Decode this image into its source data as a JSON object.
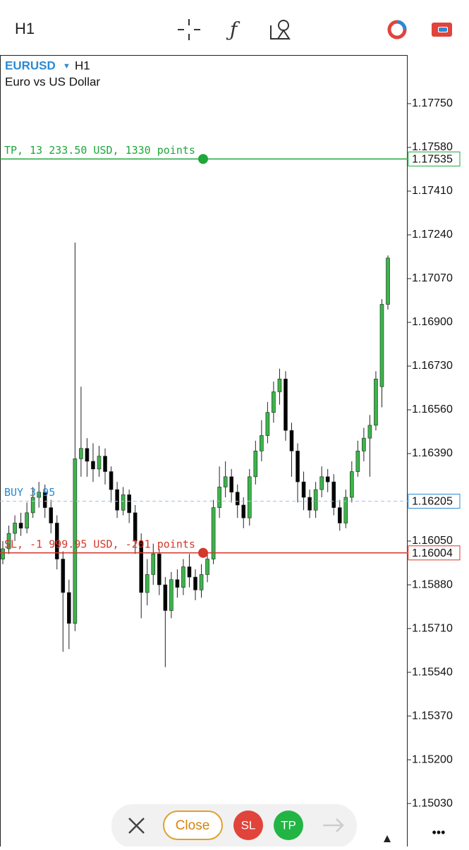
{
  "toolbar": {
    "timeframe": "H1"
  },
  "chart_data": {
    "type": "candlestick",
    "symbol": "EURUSD",
    "timeframe": "H1",
    "description": "Euro vs US Dollar",
    "open": [
      1.1598,
      1.1602,
      1.1608,
      1.1612,
      1.161,
      1.1616,
      1.1622,
      1.1624,
      1.1618,
      1.1612,
      1.1598,
      1.1585,
      1.1573,
      1.1637,
      1.1641,
      1.1636,
      1.1633,
      1.1638,
      1.1632,
      1.1625,
      1.1617,
      1.1623,
      1.1616,
      1.1605,
      1.1585,
      1.1592,
      1.16,
      1.1588,
      1.1578,
      1.159,
      1.1587,
      1.1595,
      1.1591,
      1.1586,
      1.1592,
      1.1598,
      1.1618,
      1.1626,
      1.163,
      1.1624,
      1.1619,
      1.1614,
      1.163,
      1.164,
      1.1646,
      1.1655,
      1.1663,
      1.1668,
      1.1648,
      1.164,
      1.1628,
      1.1622,
      1.1617,
      1.1625,
      1.163,
      1.1628,
      1.1618,
      1.1612,
      1.1622,
      1.1632,
      1.164,
      1.1645,
      1.165,
      1.1665,
      1.1697
    ],
    "high": [
      1.1605,
      1.1611,
      1.1615,
      1.1616,
      1.162,
      1.1626,
      1.1628,
      1.1627,
      1.1621,
      1.1615,
      1.1601,
      1.159,
      1.1721,
      1.1665,
      1.1645,
      1.1643,
      1.1642,
      1.1641,
      1.1634,
      1.1628,
      1.1626,
      1.1625,
      1.1619,
      1.1608,
      1.1598,
      1.1604,
      1.1602,
      1.1591,
      1.1593,
      1.1594,
      1.1598,
      1.16,
      1.1594,
      1.1596,
      1.1601,
      1.1621,
      1.1634,
      1.1636,
      1.1633,
      1.1627,
      1.1622,
      1.1633,
      1.1644,
      1.1652,
      1.1659,
      1.1667,
      1.1672,
      1.1671,
      1.1651,
      1.1643,
      1.1632,
      1.1625,
      1.1628,
      1.1634,
      1.1633,
      1.1631,
      1.1621,
      1.1625,
      1.1636,
      1.1644,
      1.1649,
      1.1654,
      1.1671,
      1.1699,
      1.1716
    ],
    "low": [
      1.1596,
      1.16,
      1.1605,
      1.1607,
      1.1608,
      1.1614,
      1.1618,
      1.1614,
      1.1608,
      1.1594,
      1.1562,
      1.1563,
      1.157,
      1.163,
      1.163,
      1.1628,
      1.163,
      1.1627,
      1.162,
      1.1614,
      1.1615,
      1.1612,
      1.16,
      1.1575,
      1.158,
      1.1588,
      1.1584,
      1.1556,
      1.1575,
      1.1583,
      1.1584,
      1.1587,
      1.1582,
      1.1583,
      1.1589,
      1.1596,
      1.1614,
      1.1622,
      1.162,
      1.1614,
      1.161,
      1.1611,
      1.1627,
      1.1636,
      1.1643,
      1.1651,
      1.1658,
      1.1644,
      1.163,
      1.162,
      1.1617,
      1.1614,
      1.1614,
      1.1622,
      1.1624,
      1.1615,
      1.1609,
      1.161,
      1.162,
      1.163,
      1.1636,
      1.163,
      1.1648,
      1.1657,
      1.1695
    ],
    "close": [
      1.1602,
      1.1608,
      1.1612,
      1.161,
      1.1616,
      1.1622,
      1.1624,
      1.1618,
      1.1612,
      1.1598,
      1.1585,
      1.1573,
      1.1637,
      1.1641,
      1.1636,
      1.1633,
      1.1638,
      1.1632,
      1.1625,
      1.1617,
      1.1623,
      1.1616,
      1.1605,
      1.1585,
      1.1592,
      1.16,
      1.1588,
      1.1578,
      1.159,
      1.1587,
      1.1595,
      1.1591,
      1.1586,
      1.1592,
      1.1598,
      1.1618,
      1.1626,
      1.163,
      1.1624,
      1.1619,
      1.1614,
      1.163,
      1.164,
      1.1646,
      1.1655,
      1.1663,
      1.1668,
      1.1648,
      1.164,
      1.1628,
      1.1622,
      1.1617,
      1.1625,
      1.163,
      1.1628,
      1.1618,
      1.1612,
      1.1622,
      1.1632,
      1.164,
      1.1645,
      1.165,
      1.1668,
      1.1697,
      1.1715
    ],
    "up_color": "#3cb44b",
    "down_color": "#000000",
    "ylim": [
      1.14863,
      1.17939
    ],
    "yticks": [
      {
        "value": 1.1775,
        "label": "1.17750"
      },
      {
        "value": 1.1758,
        "label": "1.17580"
      },
      {
        "value": 1.1741,
        "label": "1.17410"
      },
      {
        "value": 1.1724,
        "label": "1.17240"
      },
      {
        "value": 1.1707,
        "label": "1.17070"
      },
      {
        "value": 1.169,
        "label": "1.16900"
      },
      {
        "value": 1.1673,
        "label": "1.16730"
      },
      {
        "value": 1.1656,
        "label": "1.16560"
      },
      {
        "value": 1.1639,
        "label": "1.16390"
      },
      {
        "value": 1.1605,
        "label": "1.16050"
      },
      {
        "value": 1.1588,
        "label": "1.15880"
      },
      {
        "value": 1.1571,
        "label": "1.15710"
      },
      {
        "value": 1.1554,
        "label": "1.15540"
      },
      {
        "value": 1.1537,
        "label": "1.15370"
      },
      {
        "value": 1.152,
        "label": "1.15200"
      },
      {
        "value": 1.1503,
        "label": "1.15030"
      }
    ],
    "levels": [
      {
        "label": "TP, 13 233.50 USD, 1330 points",
        "value": 1.17535,
        "color": "#1ea73a",
        "dashed": false,
        "handle": true
      },
      {
        "label": "BUY 3.95",
        "value": 1.16205,
        "color": "#2a8ad4",
        "dashed": true,
        "handle": false
      },
      {
        "label": "SL, -1 999.95 USD, -201 points",
        "value": 1.16004,
        "color": "#d5372c",
        "dashed": false,
        "handle": true
      }
    ]
  },
  "actions": {
    "close": "Close",
    "sl": "SL",
    "tp": "TP"
  }
}
